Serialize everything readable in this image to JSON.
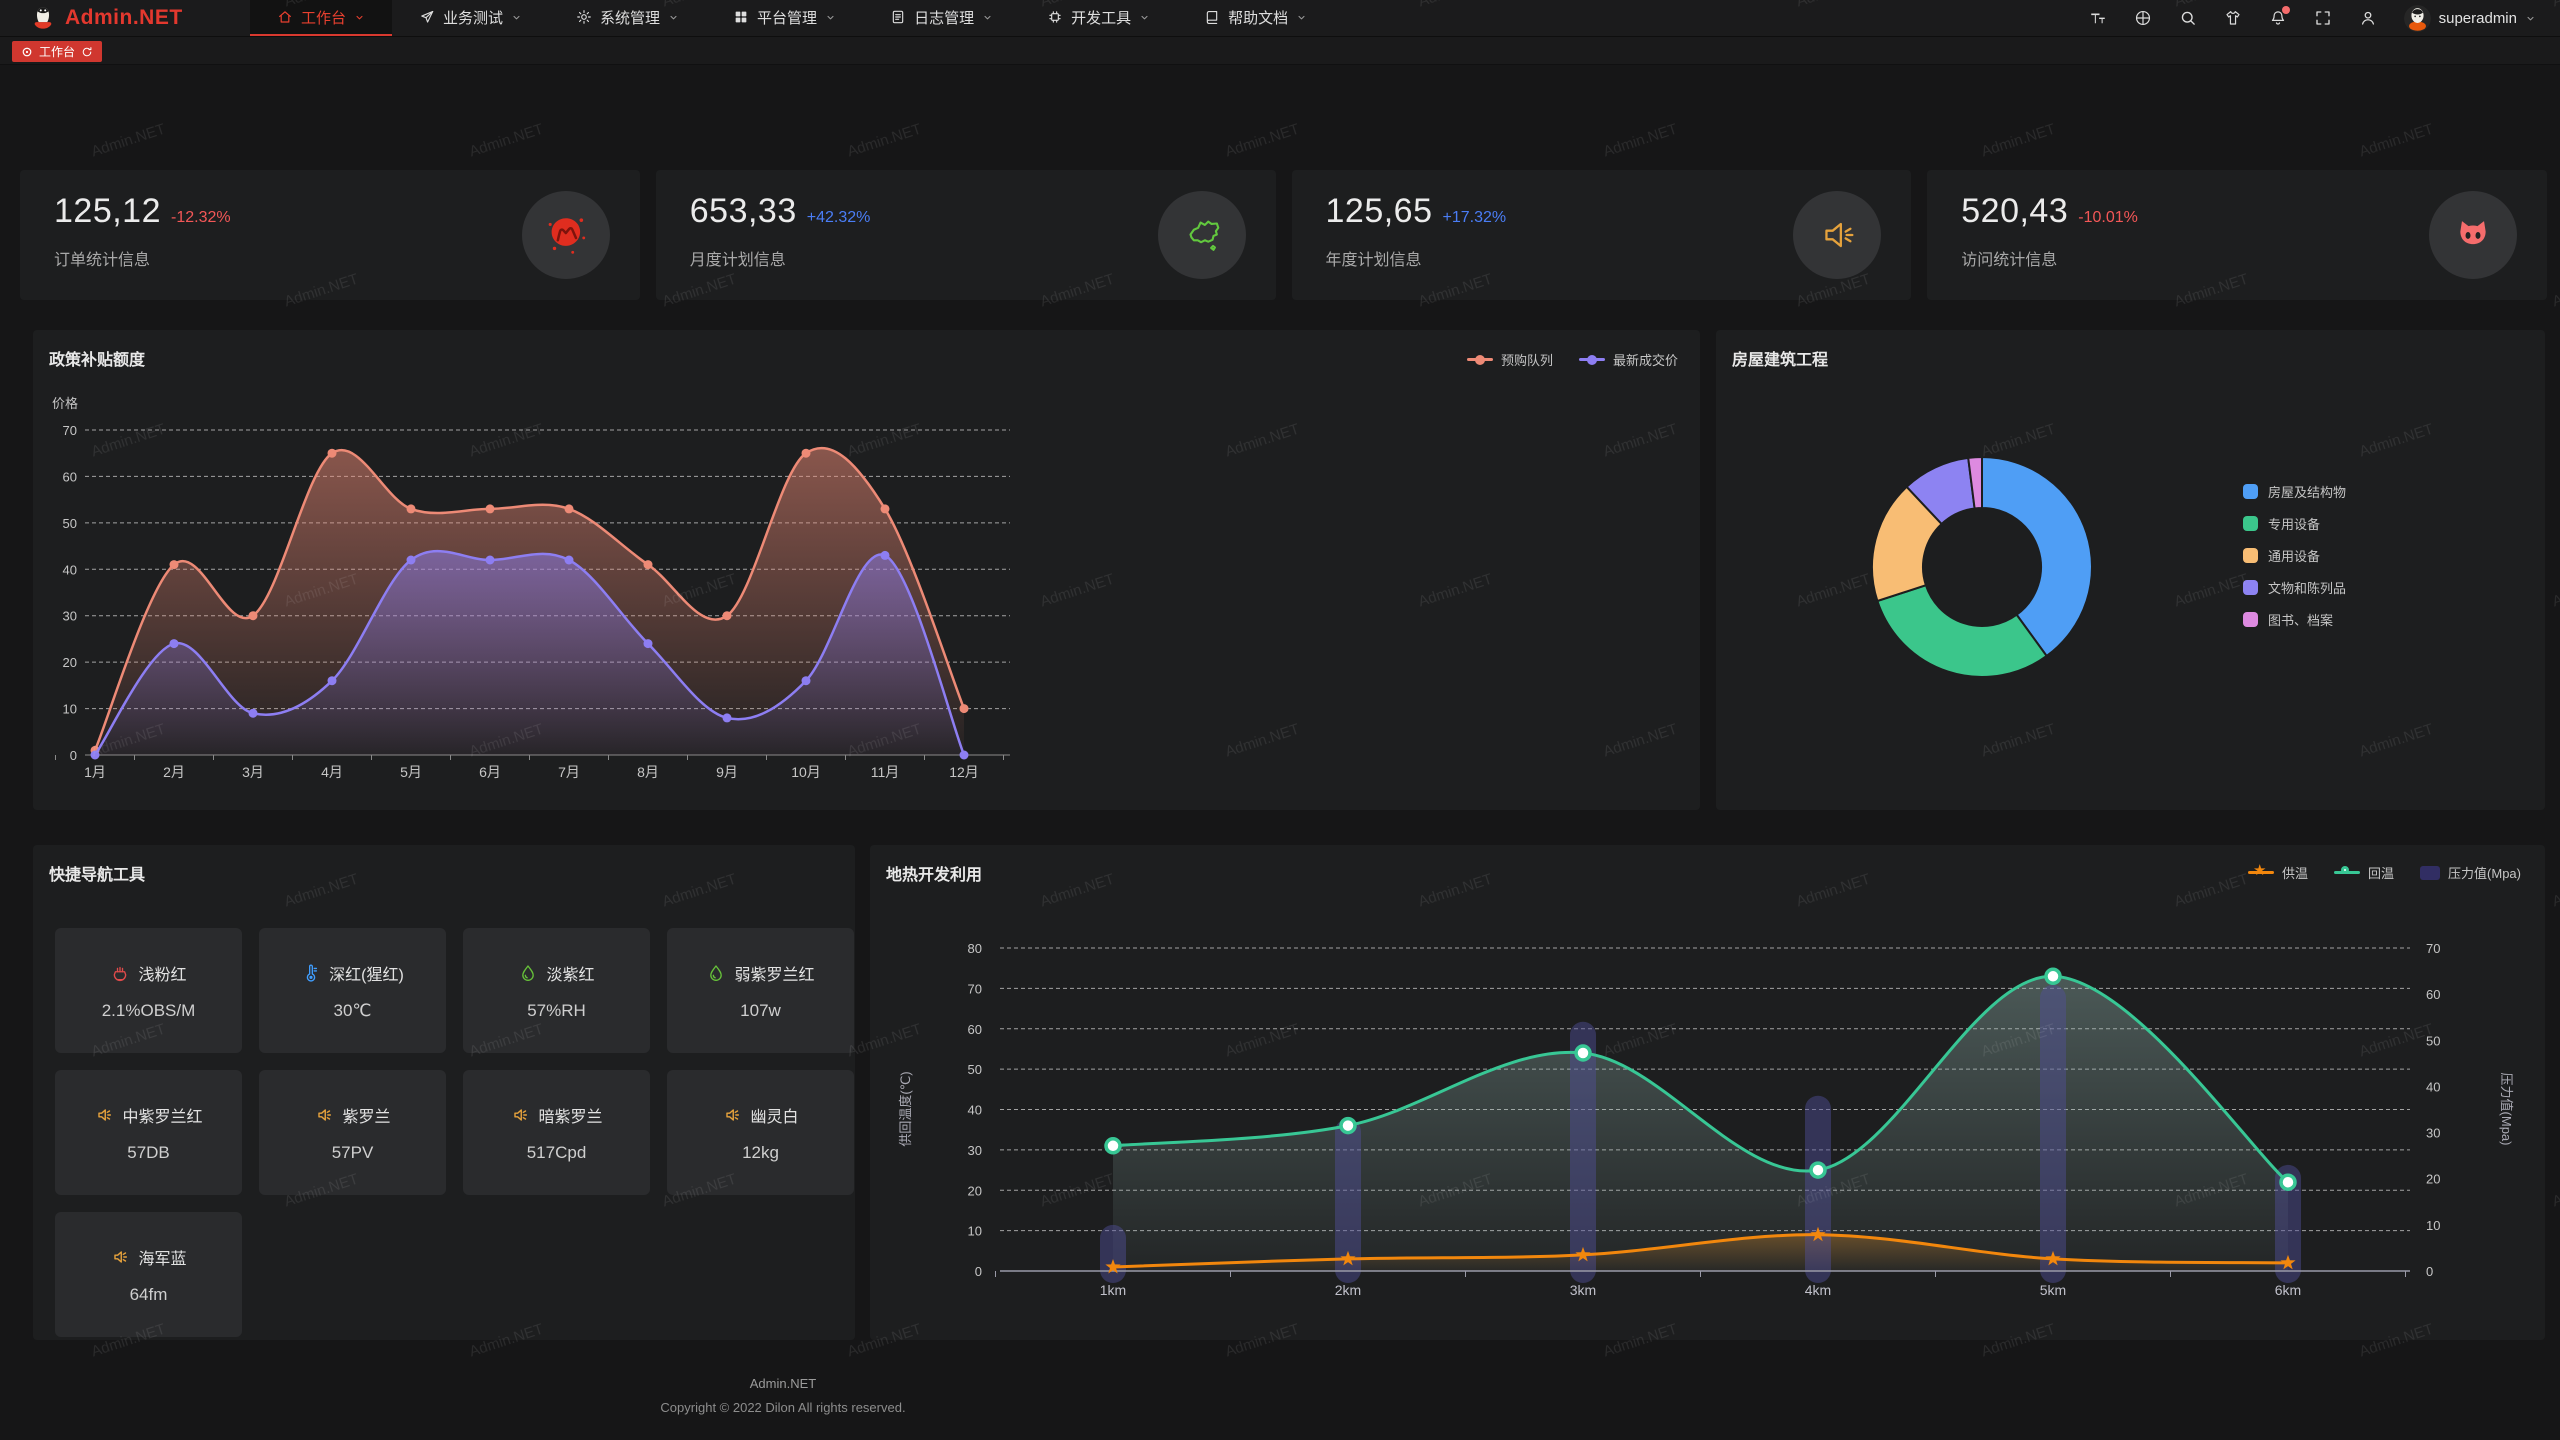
{
  "navbar": {
    "logo_text": "Admin.NET",
    "menu": [
      {
        "label": "工作台",
        "icon": "home",
        "active": true
      },
      {
        "label": "业务测试",
        "icon": "send",
        "active": false
      },
      {
        "label": "系统管理",
        "icon": "gear",
        "active": false
      },
      {
        "label": "平台管理",
        "icon": "grid",
        "active": false
      },
      {
        "label": "日志管理",
        "icon": "file",
        "active": false
      },
      {
        "label": "开发工具",
        "icon": "cpu",
        "active": false
      },
      {
        "label": "帮助文档",
        "icon": "book",
        "active": false
      }
    ],
    "tools": [
      "font-size",
      "language",
      "search",
      "theme",
      "bell",
      "fullscreen",
      "user"
    ],
    "notification_dot": true,
    "username": "superadmin"
  },
  "tabbar": {
    "tabs": [
      {
        "label": "工作台",
        "active": true
      }
    ]
  },
  "stat_cards": [
    {
      "value": "125,12",
      "delta": "-12.32%",
      "trend": "down",
      "label": "订单统计信息",
      "icon": "meetup",
      "icon_color": "#e02d1f"
    },
    {
      "value": "653,33",
      "delta": "+42.32%",
      "trend": "up",
      "label": "月度计划信息",
      "icon": "china",
      "icon_color": "#62c83e"
    },
    {
      "value": "125,65",
      "delta": "+17.32%",
      "trend": "up",
      "label": "年度计划信息",
      "icon": "speaker",
      "icon_color": "#e6a23c"
    },
    {
      "value": "520,43",
      "delta": "-10.01%",
      "trend": "down",
      "label": "访问统计信息",
      "icon": "cat",
      "icon_color": "#f56c6c"
    }
  ],
  "chart_data": [
    {
      "type": "area",
      "title": "政策补贴额度",
      "ylabel": "价格",
      "ylim": [
        0,
        70
      ],
      "y_step": 10,
      "grid": "dashed",
      "legend_position": "top-right",
      "categories": [
        "1月",
        "2月",
        "3月",
        "4月",
        "5月",
        "6月",
        "7月",
        "8月",
        "9月",
        "10月",
        "11月",
        "12月"
      ],
      "series": [
        {
          "name": "预购队列",
          "color": "#ed8a76",
          "values": [
            1,
            41,
            30,
            65,
            53,
            53,
            53,
            41,
            30,
            65,
            53,
            10
          ]
        },
        {
          "name": "最新成交价",
          "color": "#8d7ef2",
          "values": [
            0,
            24,
            9,
            16,
            42,
            42,
            42,
            24,
            8,
            16,
            43,
            0
          ]
        }
      ]
    },
    {
      "type": "pie",
      "title": "房屋建筑工程",
      "donut": true,
      "legend_position": "right",
      "items": [
        {
          "label": "房屋及结构物",
          "value": 40,
          "color": "#4f9ef5"
        },
        {
          "label": "专用设备",
          "value": 30,
          "color": "#3bc68b"
        },
        {
          "label": "通用设备",
          "value": 18,
          "color": "#f8bd74"
        },
        {
          "label": "文物和陈列品",
          "value": 10,
          "color": "#8d83f2"
        },
        {
          "label": "图书、档案",
          "value": 2,
          "color": "#dd8ae0"
        }
      ]
    },
    {
      "type": "mixed",
      "title": "地热开发利用",
      "categories": [
        "1km",
        "2km",
        "3km",
        "4km",
        "5km",
        "6km"
      ],
      "left_axis": {
        "label": "供回温度(℃)",
        "ylim": [
          0,
          80
        ],
        "step": 10
      },
      "right_axis": {
        "label": "压力值(Mpa)",
        "ylim": [
          0,
          70
        ],
        "step": 10
      },
      "legend_position": "top-right",
      "series": [
        {
          "name": "供温",
          "type": "line",
          "marker": "star",
          "axis": "left",
          "color": "#f2870d",
          "values": [
            1,
            3,
            4,
            9,
            3,
            2
          ]
        },
        {
          "name": "回温",
          "type": "line",
          "marker": "circle",
          "axis": "left",
          "color": "#38c795",
          "values": [
            31,
            36,
            54,
            25,
            73,
            22
          ]
        },
        {
          "name": "压力值(Mpa)",
          "type": "bar",
          "axis": "right",
          "color": "#53509b",
          "swatch_color": "#312e63",
          "values": [
            10,
            33,
            54,
            38,
            62,
            23
          ]
        }
      ]
    }
  ],
  "quick_nav": {
    "title": "快捷导航工具",
    "items": [
      {
        "name": "浅粉红",
        "value": "2.1%OBS/M",
        "icon": "burner",
        "icon_color": "#e04b4b"
      },
      {
        "name": "深红(猩红)",
        "value": "30℃",
        "icon": "thermometer",
        "icon_color": "#409eff"
      },
      {
        "name": "淡紫红",
        "value": "57%RH",
        "icon": "drop",
        "icon_color": "#67c23a"
      },
      {
        "name": "弱紫罗兰红",
        "value": "107w",
        "icon": "drop",
        "icon_color": "#67c23a"
      },
      {
        "name": "中紫罗兰红",
        "value": "57DB",
        "icon": "speaker-sm",
        "icon_color": "#e6a23c"
      },
      {
        "name": "紫罗兰",
        "value": "57PV",
        "icon": "speaker-sm",
        "icon_color": "#e6a23c"
      },
      {
        "name": "暗紫罗兰",
        "value": "517Cpd",
        "icon": "speaker-sm",
        "icon_color": "#e6a23c"
      },
      {
        "name": "幽灵白",
        "value": "12kg",
        "icon": "speaker-sm",
        "icon_color": "#e6a23c"
      },
      {
        "name": "海军蓝",
        "value": "64fm",
        "icon": "speaker-sm",
        "icon_color": "#e6a23c"
      }
    ]
  },
  "footer": {
    "brand": "Admin.NET",
    "copyright": "Copyright © 2022 Dilon All rights reserved."
  },
  "watermark": "Admin.NET",
  "colors": {
    "accent_red": "#d9392f",
    "delta_down": "#f35757",
    "delta_up": "#4a7df5",
    "panel_bg": "#1d1e1f",
    "page_bg": "#161617"
  }
}
